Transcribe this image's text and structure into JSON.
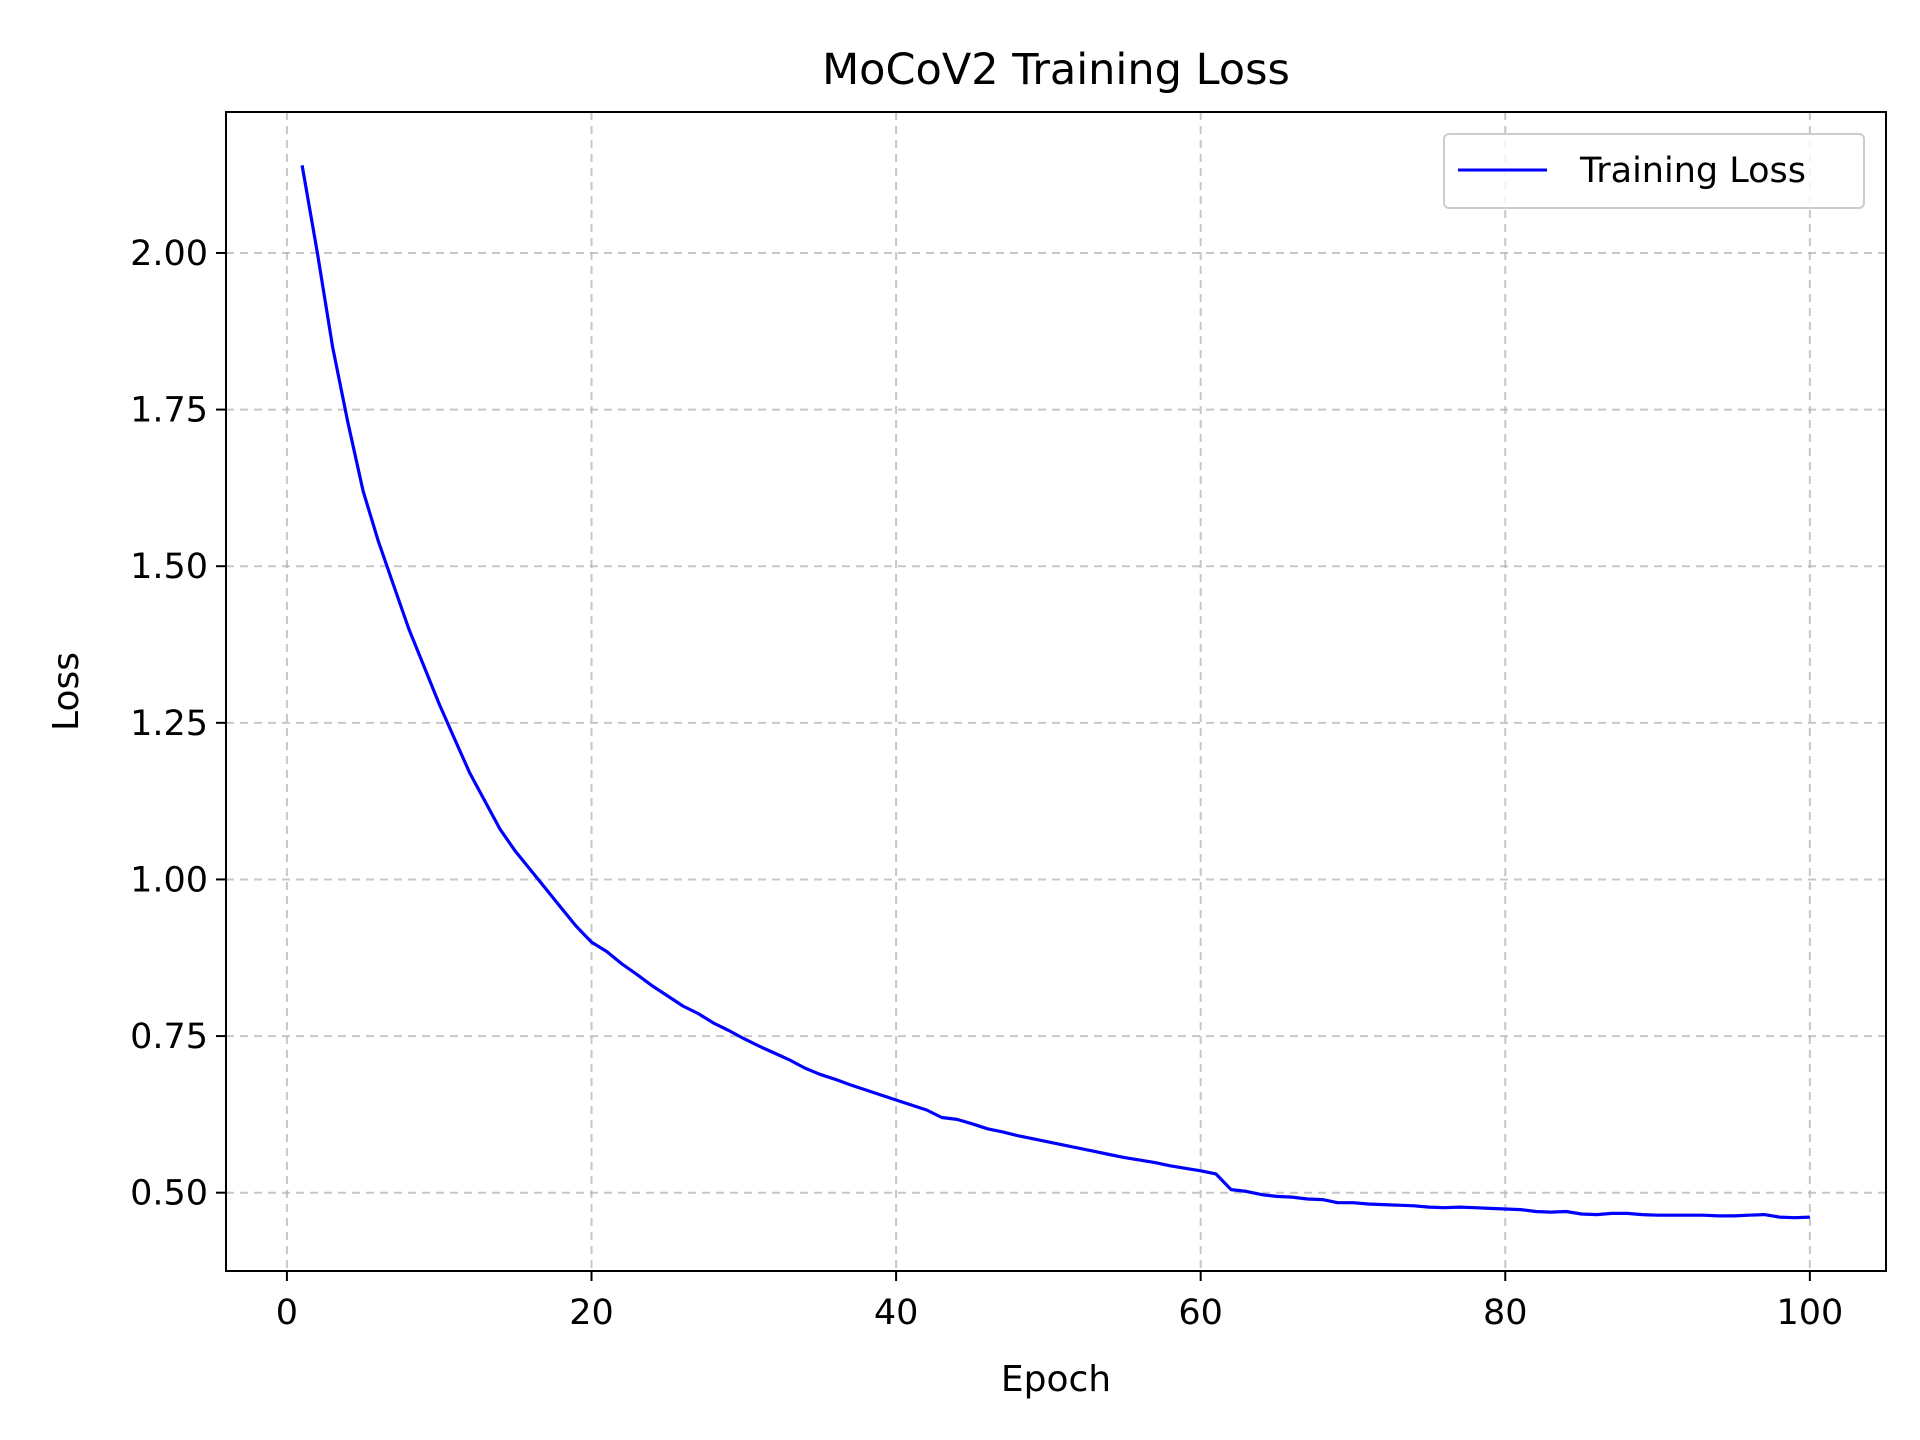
{
  "chart_data": {
    "type": "line",
    "title": "MoCoV2 Training Loss",
    "xlabel": "Epoch",
    "ylabel": "Loss",
    "xlim": [
      -4,
      105
    ],
    "ylim": [
      0.375,
      2.225
    ],
    "xticks": [
      0,
      20,
      40,
      60,
      80,
      100
    ],
    "xtick_labels": [
      "0",
      "20",
      "40",
      "60",
      "80",
      "100"
    ],
    "yticks": [
      0.5,
      0.75,
      1.0,
      1.25,
      1.5,
      1.75,
      2.0
    ],
    "ytick_labels": [
      "0.50",
      "0.75",
      "1.00",
      "1.25",
      "1.50",
      "1.75",
      "2.00"
    ],
    "grid": true,
    "legend_position": "top-right",
    "series": [
      {
        "name": "Training Loss",
        "color": "#0000ff",
        "x": [
          1,
          2,
          3,
          4,
          5,
          6,
          7,
          8,
          9,
          10,
          11,
          12,
          13,
          14,
          15,
          16,
          17,
          18,
          19,
          20,
          21,
          22,
          23,
          24,
          25,
          26,
          27,
          28,
          29,
          30,
          31,
          32,
          33,
          34,
          35,
          36,
          37,
          38,
          39,
          40,
          41,
          42,
          43,
          44,
          45,
          46,
          47,
          48,
          49,
          50,
          51,
          52,
          53,
          54,
          55,
          56,
          57,
          58,
          59,
          60,
          61,
          62,
          63,
          64,
          65,
          66,
          67,
          68,
          69,
          70,
          71,
          72,
          73,
          74,
          75,
          76,
          77,
          78,
          79,
          80,
          81,
          82,
          83,
          84,
          85,
          86,
          87,
          88,
          89,
          90,
          91,
          92,
          93,
          94,
          95,
          96,
          97,
          98,
          99,
          100
        ],
        "values": [
          2.14,
          2.0,
          1.85,
          1.73,
          1.62,
          1.54,
          1.47,
          1.4,
          1.34,
          1.28,
          1.225,
          1.17,
          1.125,
          1.08,
          1.045,
          1.015,
          0.985,
          0.955,
          0.925,
          0.9,
          0.885,
          0.865,
          0.848,
          0.83,
          0.814,
          0.798,
          0.786,
          0.771,
          0.759,
          0.746,
          0.734,
          0.723,
          0.712,
          0.699,
          0.689,
          0.681,
          0.672,
          0.664,
          0.656,
          0.648,
          0.64,
          0.632,
          0.62,
          0.617,
          0.61,
          0.602,
          0.597,
          0.591,
          0.586,
          0.581,
          0.576,
          0.571,
          0.566,
          0.561,
          0.556,
          0.552,
          0.548,
          0.543,
          0.539,
          0.535,
          0.53,
          0.505,
          0.502,
          0.497,
          0.494,
          0.493,
          0.49,
          0.489,
          0.484,
          0.484,
          0.482,
          0.481,
          0.48,
          0.479,
          0.477,
          0.476,
          0.477,
          0.476,
          0.475,
          0.474,
          0.473,
          0.47,
          0.469,
          0.47,
          0.466,
          0.465,
          0.467,
          0.467,
          0.465,
          0.464,
          0.464,
          0.464,
          0.464,
          0.463,
          0.463,
          0.464,
          0.465,
          0.461,
          0.46,
          0.461
        ]
      }
    ]
  }
}
